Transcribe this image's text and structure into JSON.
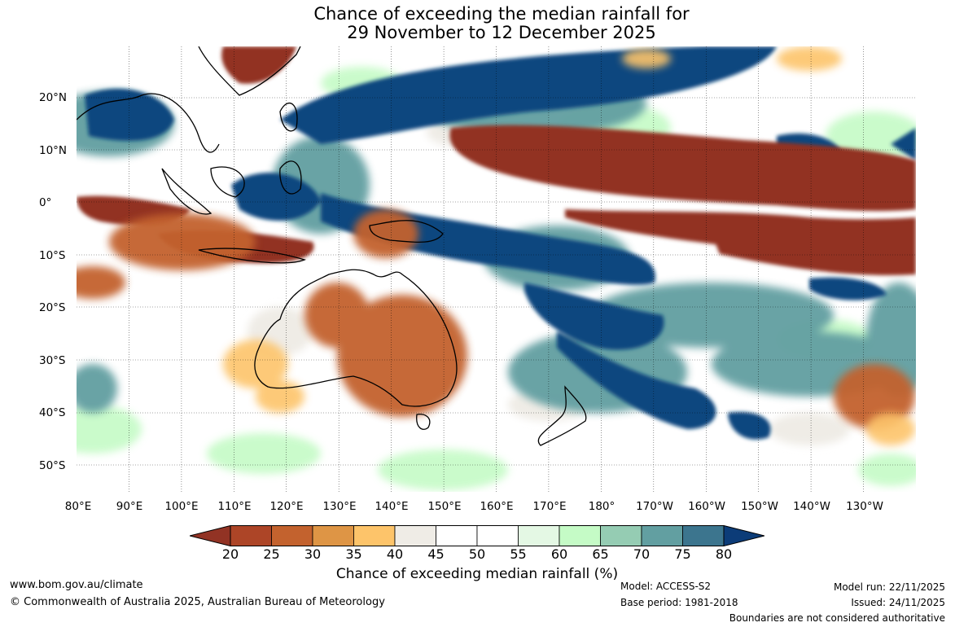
{
  "title": {
    "line1": "Chance of exceeding the median rainfall for",
    "line2": "29 November to 12 December 2025"
  },
  "map": {
    "lat_labels": [
      "20°N",
      "10°N",
      "0°",
      "10°S",
      "20°S",
      "30°S",
      "40°S",
      "50°S"
    ],
    "lon_labels": [
      "80°E",
      "90°E",
      "100°E",
      "110°E",
      "120°E",
      "130°E",
      "140°E",
      "150°E",
      "160°E",
      "170°E",
      "180°",
      "170°W",
      "160°W",
      "150°W",
      "140°W",
      "130°W"
    ]
  },
  "colorbar": {
    "title": "Chance of exceeding median rainfall (%)",
    "ticks": [
      "20",
      "25",
      "30",
      "35",
      "40",
      "45",
      "50",
      "55",
      "60",
      "65",
      "70",
      "75",
      "80"
    ],
    "colors": [
      "#923324",
      "#ad4527",
      "#c3622e",
      "#de9545",
      "#fdc46a",
      "#efece6",
      "#ffffff",
      "#ffffff",
      "#e4f8e4",
      "#c5fbc6",
      "#95ccb3",
      "#629fa1",
      "#3c758e",
      "#10477f",
      "#0c3c78"
    ]
  },
  "footer": {
    "website": "www.bom.gov.au/climate",
    "copyright": "© Commonwealth of Australia 2025, Australian Bureau of Meteorology",
    "model": "Model: ACCESS-S2",
    "base_period": "Base period: 1981-2018",
    "model_run": "Model run: 22/11/2025",
    "issued": "Issued: 24/11/2025",
    "disclaimer": "Boundaries are not considered authoritative"
  }
}
